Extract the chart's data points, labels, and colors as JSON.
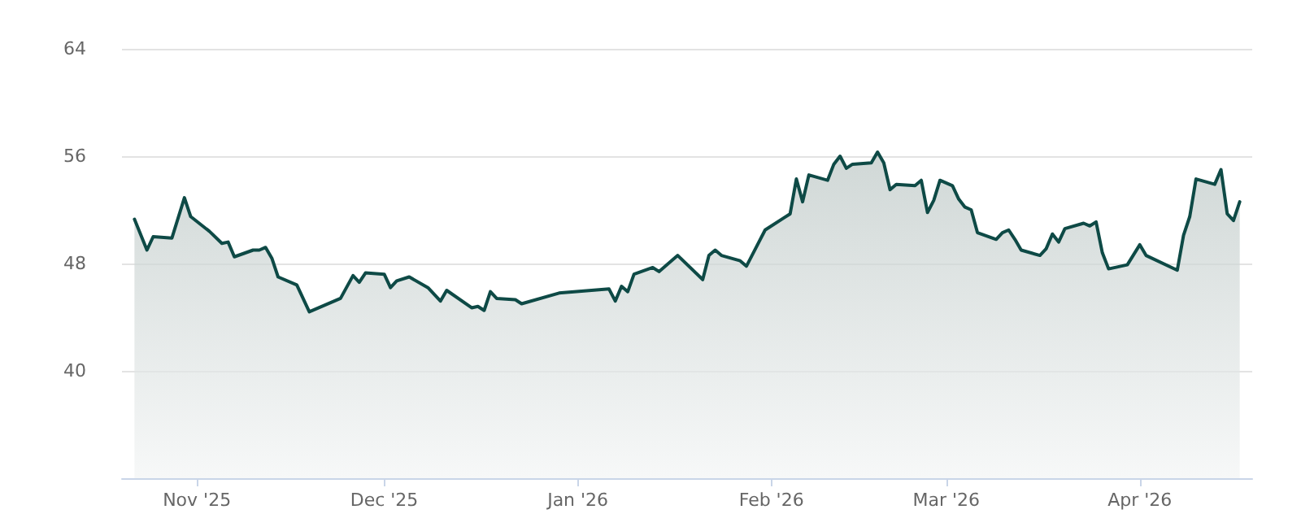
{
  "chart_data": {
    "type": "area",
    "x": [
      "2025-10-22",
      "2025-10-24",
      "2025-10-25",
      "2025-10-28",
      "2025-10-30",
      "2025-10-31",
      "2025-11-03",
      "2025-11-05",
      "2025-11-06",
      "2025-11-07",
      "2025-11-10",
      "2025-11-11",
      "2025-11-12",
      "2025-11-13",
      "2025-11-14",
      "2025-11-17",
      "2025-11-19",
      "2025-11-24",
      "2025-11-26",
      "2025-11-27",
      "2025-11-28",
      "2025-12-01",
      "2025-12-02",
      "2025-12-03",
      "2025-12-05",
      "2025-12-08",
      "2025-12-10",
      "2025-12-11",
      "2025-12-15",
      "2025-12-16",
      "2025-12-17",
      "2025-12-18",
      "2025-12-19",
      "2025-12-22",
      "2025-12-23",
      "2025-12-29",
      "2026-01-06",
      "2026-01-07",
      "2026-01-08",
      "2026-01-09",
      "2026-01-10",
      "2026-01-13",
      "2026-01-14",
      "2026-01-17",
      "2026-01-21",
      "2026-01-22",
      "2026-01-23",
      "2026-01-24",
      "2026-01-27",
      "2026-01-28",
      "2026-01-30",
      "2026-01-31",
      "2026-02-03",
      "2026-02-04",
      "2026-02-05",
      "2026-02-06",
      "2026-02-07",
      "2026-02-10",
      "2026-02-11",
      "2026-02-12",
      "2026-02-13",
      "2026-02-14",
      "2026-02-17",
      "2026-02-18",
      "2026-02-19",
      "2026-02-20",
      "2026-02-21",
      "2026-02-24",
      "2026-02-25",
      "2026-02-26",
      "2026-02-27",
      "2026-02-28",
      "2026-03-02",
      "2026-03-03",
      "2026-03-04",
      "2026-03-05",
      "2026-03-06",
      "2026-03-09",
      "2026-03-10",
      "2026-03-11",
      "2026-03-12",
      "2026-03-13",
      "2026-03-16",
      "2026-03-17",
      "2026-03-18",
      "2026-03-19",
      "2026-03-20",
      "2026-03-23",
      "2026-03-24",
      "2026-03-25",
      "2026-03-26",
      "2026-03-27",
      "2026-03-30",
      "2026-04-01",
      "2026-04-02",
      "2026-04-07",
      "2026-04-08",
      "2026-04-09",
      "2026-04-10",
      "2026-04-13",
      "2026-04-14",
      "2026-04-15",
      "2026-04-16",
      "2026-04-17"
    ],
    "series": [
      {
        "color": "#0e4a46",
        "values": [
          51.3,
          49.0,
          50.0,
          49.9,
          52.9,
          51.5,
          50.4,
          49.5,
          49.6,
          48.5,
          49.0,
          49.0,
          49.2,
          48.4,
          47.0,
          46.4,
          44.4,
          45.4,
          47.1,
          46.6,
          47.3,
          47.2,
          46.2,
          46.7,
          47.0,
          46.2,
          45.2,
          46.0,
          44.7,
          44.8,
          44.5,
          45.9,
          45.4,
          45.3,
          45.0,
          45.8,
          46.1,
          45.2,
          46.3,
          45.9,
          47.2,
          47.7,
          47.4,
          48.6,
          46.8,
          48.6,
          49.0,
          48.6,
          48.2,
          47.8,
          49.6,
          50.5,
          51.4,
          51.7,
          54.3,
          52.6,
          54.6,
          54.2,
          55.4,
          56.0,
          55.1,
          55.4,
          55.5,
          56.3,
          55.5,
          53.5,
          53.9,
          53.8,
          54.2,
          51.8,
          52.7,
          54.2,
          53.8,
          52.8,
          52.2,
          52.0,
          50.3,
          49.8,
          50.3,
          50.5,
          49.8,
          49.0,
          48.6,
          49.1,
          50.2,
          49.6,
          50.6,
          51.0,
          50.8,
          51.1,
          48.8,
          47.6,
          47.9,
          49.4,
          48.6,
          47.5,
          50.1,
          51.5,
          54.3,
          53.9,
          55.0,
          51.7,
          51.2,
          52.6
        ]
      }
    ],
    "xlim": [
      "2025-10-20",
      "2026-04-19"
    ],
    "xticks": [
      {
        "value": "2025-11-01",
        "label": "Nov '25"
      },
      {
        "value": "2025-12-01",
        "label": "Dec '25"
      },
      {
        "value": "2026-01-01",
        "label": "Jan '26"
      },
      {
        "value": "2026-02-01",
        "label": "Feb '26"
      },
      {
        "value": "2026-03-01",
        "label": "Mar '26"
      },
      {
        "value": "2026-04-01",
        "label": "Apr '26"
      }
    ],
    "ylim": [
      32,
      64
    ],
    "yticks": [
      40,
      48,
      56,
      64
    ],
    "grid": "y",
    "marker": "none",
    "line_style": "solid"
  }
}
